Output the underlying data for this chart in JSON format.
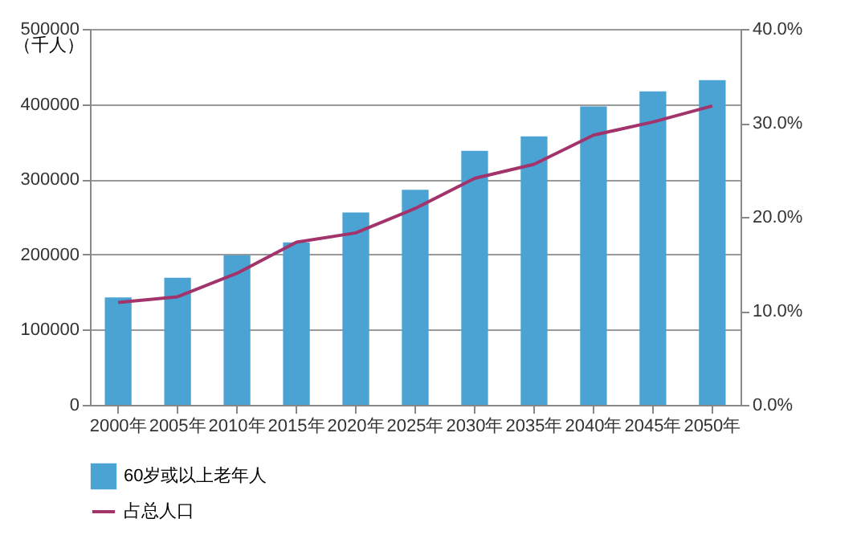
{
  "chart_data": {
    "type": "bar",
    "ylabel": "（千人）",
    "categories": [
      "2000年",
      "2005年",
      "2010年",
      "2015年",
      "2020年",
      "2025年",
      "2030年",
      "2035年",
      "2040年",
      "2045年",
      "2050年"
    ],
    "series": [
      {
        "name": "60岁或以上老年人",
        "color": "#4ba3d3",
        "values": [
          143000,
          169000,
          199000,
          216000,
          256000,
          286000,
          338000,
          357000,
          397000,
          417000,
          432000
        ]
      },
      {
        "name": "占总人口",
        "type": "line",
        "axis": "y2",
        "color": "#a2336b",
        "values": [
          10.9,
          11.5,
          14.0,
          17.3,
          18.3,
          20.9,
          24.1,
          25.6,
          28.7,
          30.1,
          31.8
        ]
      }
    ],
    "ylim": [
      0,
      500000
    ],
    "yticks": [
      0,
      100000,
      200000,
      300000,
      400000,
      500000
    ],
    "y2lim": [
      0,
      40
    ],
    "y2ticks": [
      {
        "value": 0,
        "label": "0.0%"
      },
      {
        "value": 10,
        "label": "10.0%"
      },
      {
        "value": 20,
        "label": "20.0%"
      },
      {
        "value": 30,
        "label": "30.0%"
      },
      {
        "value": 40,
        "label": "40.0%"
      }
    ],
    "grid": "y",
    "legend": "bottom"
  }
}
